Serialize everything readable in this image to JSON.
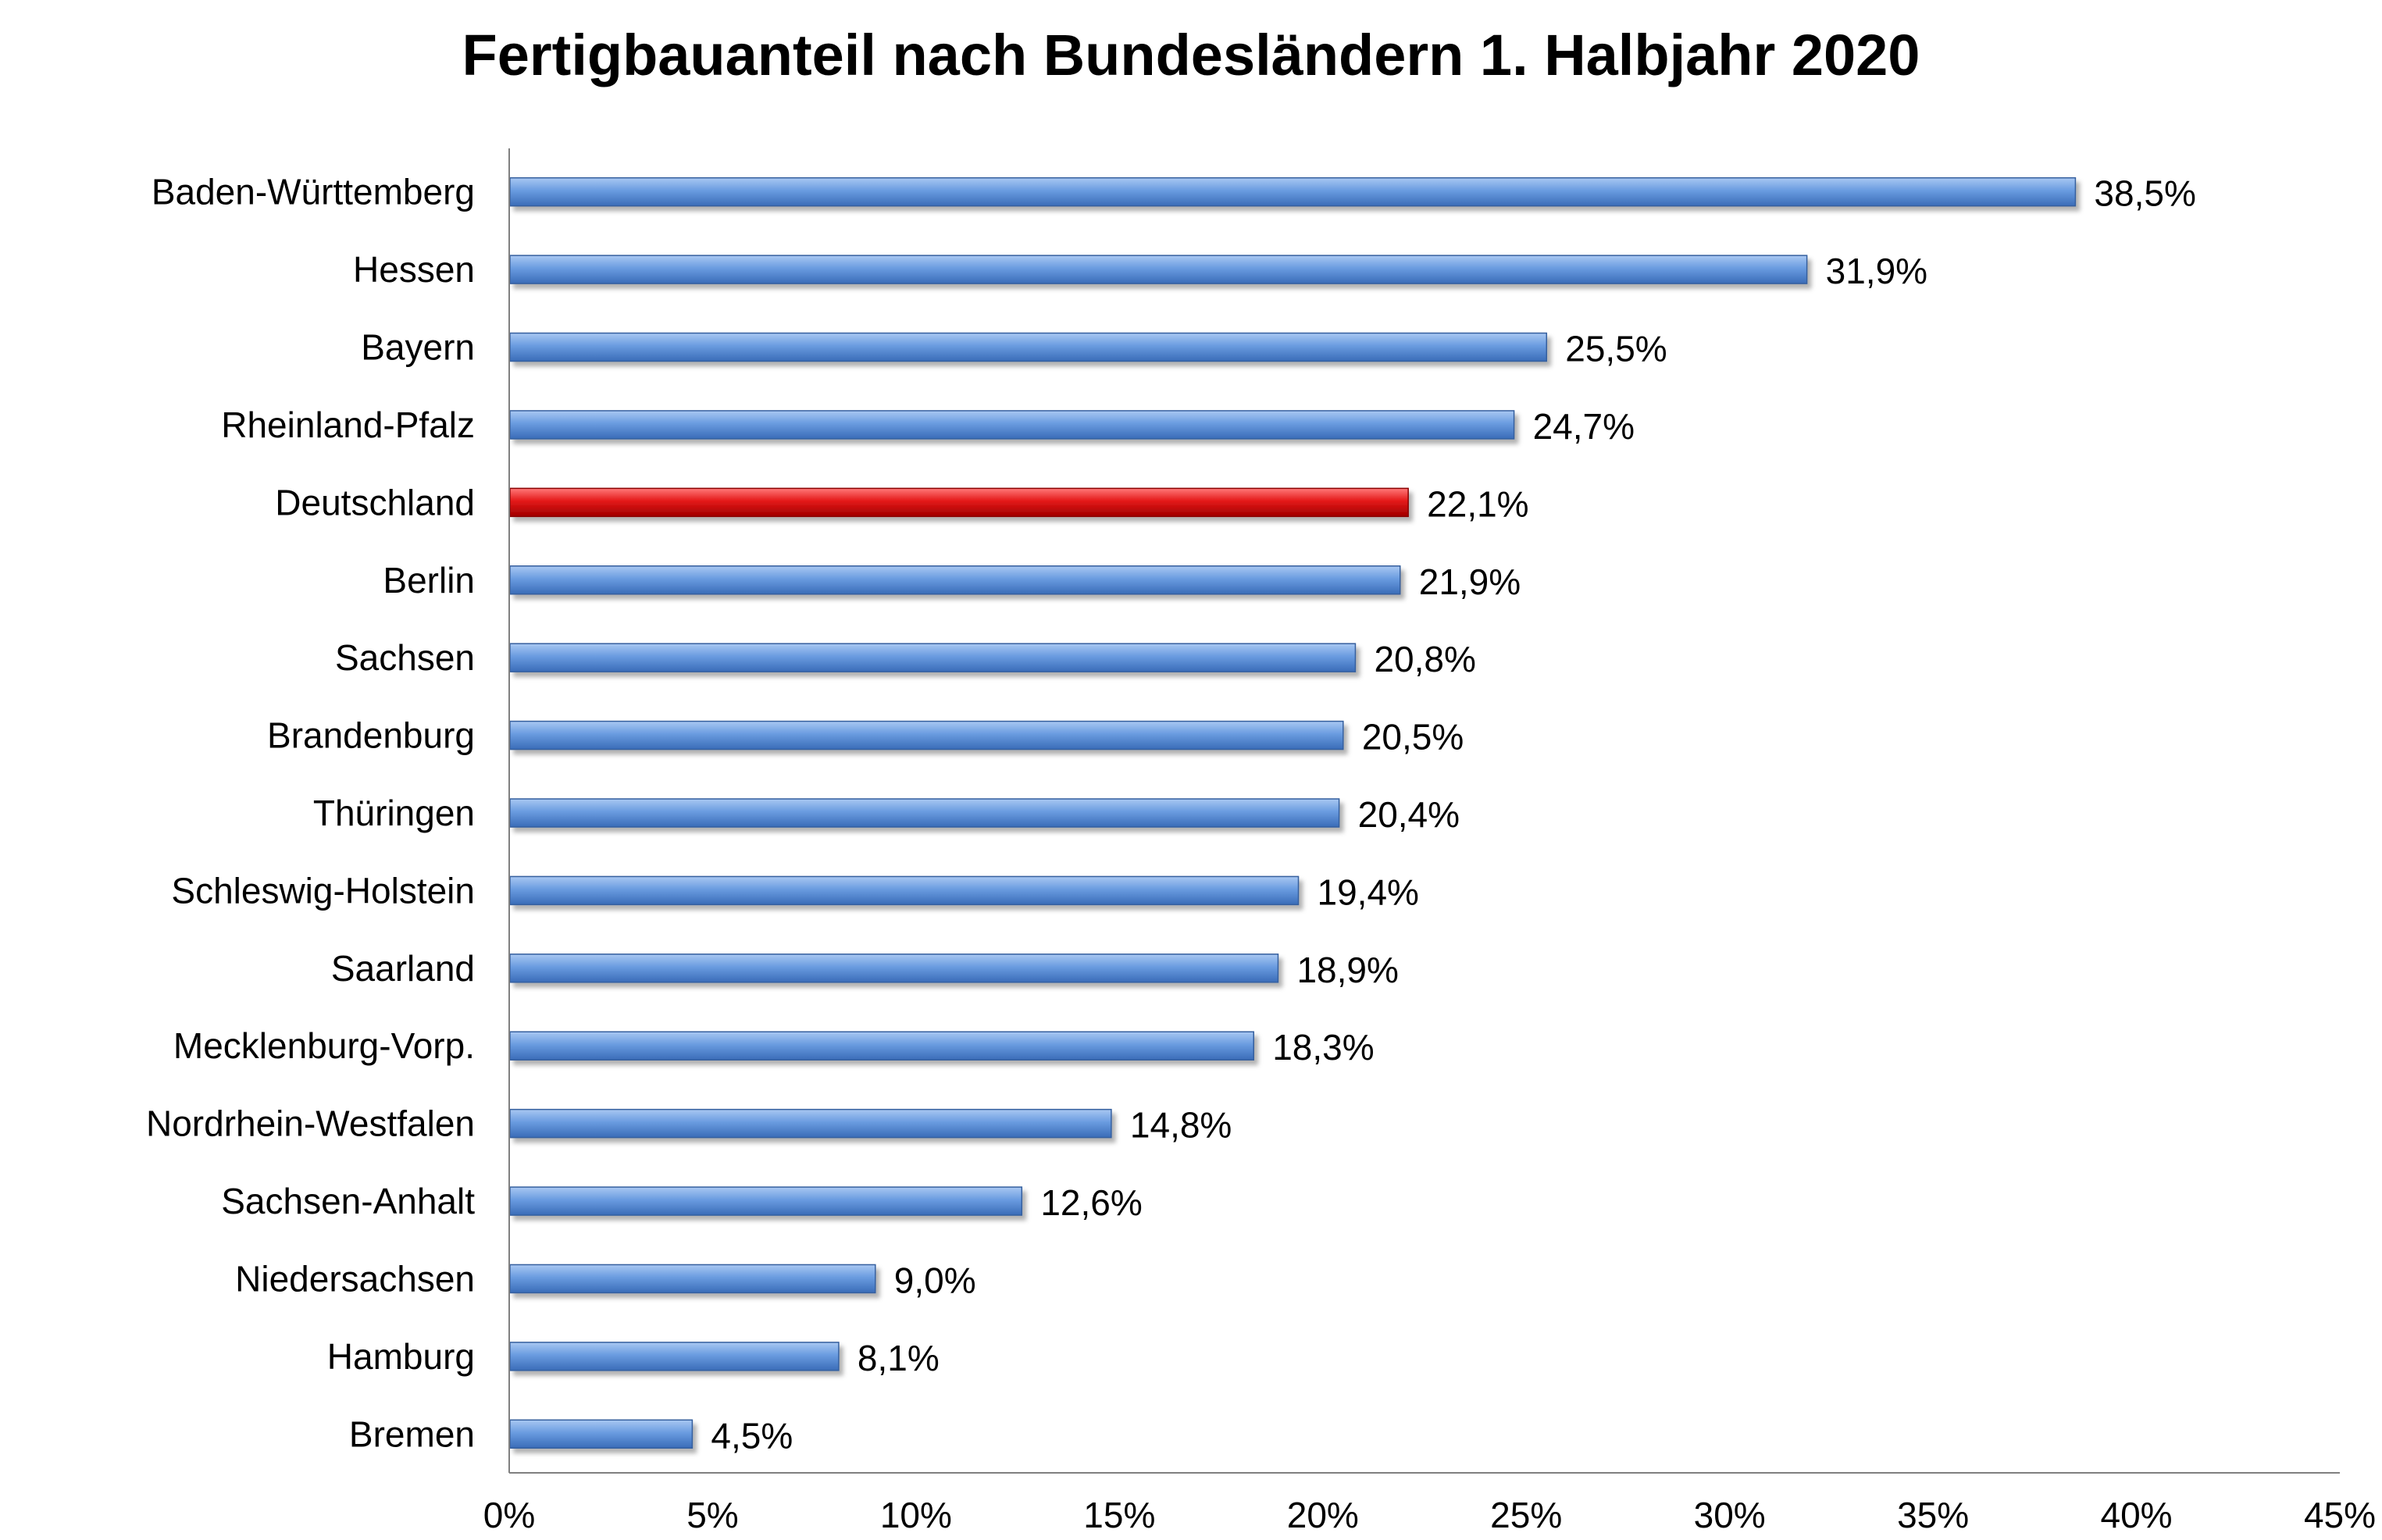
{
  "chart_data": {
    "type": "bar",
    "orientation": "horizontal",
    "title": "Fertigbauanteil nach Bundesländern 1. Halbjahr 2020",
    "categories": [
      "Baden-Württemberg",
      "Hessen",
      "Bayern",
      "Rheinland-Pfalz",
      "Deutschland",
      "Berlin",
      "Sachsen",
      "Brandenburg",
      "Thüringen",
      "Schleswig-Holstein",
      "Saarland",
      "Mecklenburg-Vorp.",
      "Nordrhein-Westfalen",
      "Sachsen-Anhalt",
      "Niedersachsen",
      "Hamburg",
      "Bremen"
    ],
    "values": [
      38.5,
      31.9,
      25.5,
      24.7,
      22.1,
      21.9,
      20.8,
      20.5,
      20.4,
      19.4,
      18.9,
      18.3,
      14.8,
      12.6,
      9.0,
      8.1,
      4.5
    ],
    "data_labels": [
      "38,5%",
      "31,9%",
      "25,5%",
      "24,7%",
      "22,1%",
      "21,9%",
      "20,8%",
      "20,5%",
      "20,4%",
      "19,4%",
      "18,9%",
      "18,3%",
      "14,8%",
      "12,6%",
      "9,0%",
      "8,1%",
      "4,5%"
    ],
    "xlim": [
      0,
      45
    ],
    "x_ticks": [
      0,
      5,
      10,
      15,
      20,
      25,
      30,
      35,
      40,
      45
    ],
    "x_tick_labels": [
      "0%",
      "5%",
      "10%",
      "15%",
      "20%",
      "25%",
      "30%",
      "35%",
      "40%",
      "45%"
    ],
    "highlight_category": "Deutschland",
    "grid": false,
    "legend": "none",
    "colors": {
      "bar": "#5b8fd6",
      "bar_highlight": "#e01010",
      "axis": "#808080"
    }
  }
}
